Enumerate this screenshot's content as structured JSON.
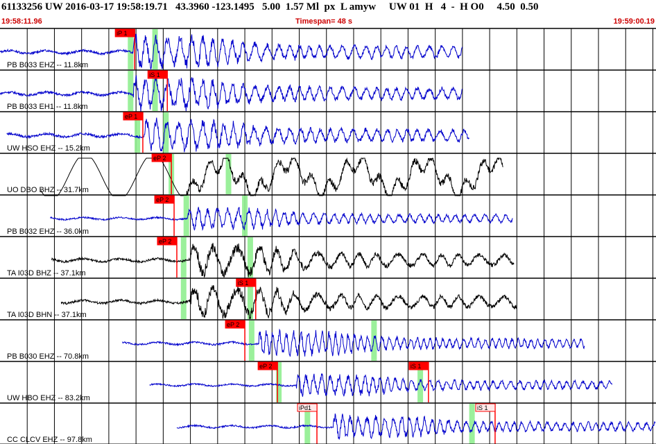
{
  "header": {
    "event_line": "61133256 UW 2016-03-17 19:58:19.71   43.3960 -123.1495   5.00  1.57 Ml  px  L amyw     UW 01  H   4  -  H O0     4.50  0.50",
    "start_time": "19:58:11.96",
    "timespan": "Timespan=  48 s",
    "end_time": "19:59:00.19"
  },
  "colors": {
    "trace_blue": "#0000cc",
    "trace_black": "#000000",
    "pick_red": "#ff0000",
    "window_green": "#90ee90",
    "text_red": "#cc0000"
  },
  "chart_data": {
    "type": "line",
    "title": "",
    "xlabel": "",
    "ylabel": "",
    "xlim": [
      0,
      48.23
    ],
    "grid": true,
    "channels": [
      {
        "label": "PB B033 EHZ -- 11.8km",
        "color": "blue",
        "start": 0.0,
        "end": 34.0,
        "onset": 9.8,
        "amp": 0.45,
        "period": 0.8,
        "lowfreq": false,
        "picks": [
          {
            "label": "iP 1",
            "t": 9.9,
            "style": "filled"
          }
        ],
        "windows": [
          9.6,
          11.4
        ]
      },
      {
        "label": "PB B033 EH1 -- 11.8km",
        "color": "blue",
        "start": 0.0,
        "end": 34.0,
        "onset": 9.8,
        "amp": 0.45,
        "period": 0.8,
        "lowfreq": false,
        "picks": [
          {
            "label": "iS 1",
            "t": 12.3,
            "style": "filled"
          }
        ],
        "windows": [
          9.6,
          11.4
        ]
      },
      {
        "label": "UW HSO EHZ -- 15.2km",
        "color": "blue",
        "start": 0.5,
        "end": 34.5,
        "onset": 10.6,
        "amp": 0.45,
        "period": 0.8,
        "lowfreq": false,
        "picks": [
          {
            "label": "eP 1",
            "t": 10.5,
            "style": "filled"
          }
        ],
        "windows": [
          10.1,
          12.2
        ]
      },
      {
        "label": "UO DBO BHZ -- 31.7km",
        "color": "black",
        "start": 3.0,
        "end": 37.0,
        "onset": 13.5,
        "amp": 0.55,
        "period": 5.0,
        "lowfreq": true,
        "picks": [
          {
            "label": "eP 2",
            "t": 12.6,
            "style": "filled"
          }
        ],
        "windows": [
          12.6,
          16.8
        ]
      },
      {
        "label": "PB B032 EHZ -- 36.0km",
        "color": "blue",
        "start": 3.7,
        "end": 37.7,
        "onset": 13.8,
        "amp": 0.3,
        "period": 0.7,
        "lowfreq": false,
        "picks": [
          {
            "label": "eP 2",
            "t": 12.8,
            "style": "filled"
          }
        ],
        "windows": [
          13.7,
          18.0
        ]
      },
      {
        "label": "TA I03D BHZ -- 37.1km",
        "color": "black",
        "start": 3.8,
        "end": 37.8,
        "onset": 14.0,
        "amp": 0.45,
        "period": 1.5,
        "lowfreq": false,
        "picks": [
          {
            "label": "eP 2",
            "t": 13.0,
            "style": "filled"
          }
        ],
        "windows": [
          13.5,
          18.4
        ]
      },
      {
        "label": "TA I03D BHN -- 37.1km",
        "color": "black",
        "start": 4.5,
        "end": 38.0,
        "onset": 14.0,
        "amp": 0.45,
        "period": 1.5,
        "lowfreq": false,
        "picks": [
          {
            "label": "iS 1",
            "t": 18.8,
            "style": "filled"
          }
        ],
        "windows": [
          13.5,
          18.4
        ]
      },
      {
        "label": "PB B030 EHZ -- 70.8km",
        "color": "blue",
        "start": 9.0,
        "end": 43.0,
        "onset": 19.0,
        "amp": 0.35,
        "period": 0.5,
        "lowfreq": false,
        "picks": [
          {
            "label": "eP 2",
            "t": 18.0,
            "style": "filled"
          }
        ],
        "windows": [
          18.5,
          27.5
        ]
      },
      {
        "label": "UW HBO EHZ -- 83.2km",
        "color": "blue",
        "start": 11.0,
        "end": 45.0,
        "onset": 21.8,
        "amp": 0.3,
        "period": 0.6,
        "lowfreq": false,
        "picks": [
          {
            "label": "eP 2",
            "t": 20.4,
            "style": "filled"
          },
          {
            "label": "iS 1",
            "t": 31.5,
            "style": "filled"
          }
        ],
        "windows": [
          20.5,
          30.9
        ]
      },
      {
        "label": "CC CLCV EHZ -- 97.8km",
        "color": "blue",
        "start": 13.0,
        "end": 48.2,
        "onset": 24.5,
        "amp": 0.32,
        "period": 0.6,
        "lowfreq": false,
        "picks": [
          {
            "label": "iPd1",
            "t": 23.3,
            "style": "outline"
          },
          {
            "label": "iS 1",
            "t": 36.4,
            "style": "outline"
          }
        ],
        "windows": [
          22.6,
          34.7
        ]
      }
    ]
  }
}
